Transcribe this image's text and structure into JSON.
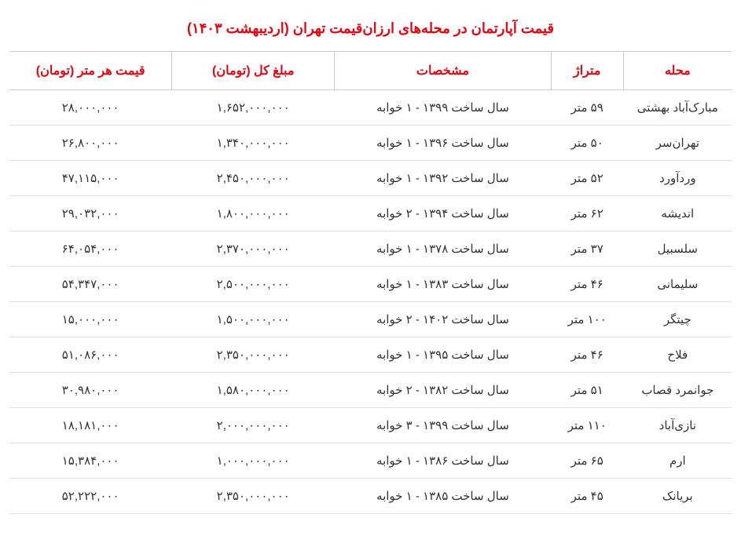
{
  "title": "قیمت آپارتمان در محله‌های ارزان‌قیمت تهران (اردیبهشت ۱۴۰۳)",
  "table": {
    "type": "table",
    "header_color": "#e30613",
    "border_color": "#cccccc",
    "row_border_color": "#e0e0e0",
    "text_color": "#333333",
    "background_color": "#ffffff",
    "title_fontsize": 18,
    "header_fontsize": 16,
    "cell_fontsize": 15,
    "columns": [
      {
        "key": "district",
        "label": "محله",
        "width": "15%"
      },
      {
        "key": "area",
        "label": "متراژ",
        "width": "10%"
      },
      {
        "key": "spec",
        "label": "مشخصات",
        "width": "30%"
      },
      {
        "key": "total",
        "label": "مبلغ کل (تومان)",
        "width": "22.5%"
      },
      {
        "key": "permeter",
        "label": "قیمت هر متر (تومان)",
        "width": "22.5%"
      }
    ],
    "rows": [
      {
        "district": "مبارک‌آباد بهشتی",
        "area": "۵۹ متر",
        "spec": "سال ساخت ۱۳۹۹ - ۱ خوابه",
        "total": "۱,۶۵۲,۰۰۰,۰۰۰",
        "permeter": "۲۸,۰۰۰,۰۰۰"
      },
      {
        "district": "تهران‌سر",
        "area": "۵۰ متر",
        "spec": "سال ساخت ۱۳۹۶ - ۱ خوابه",
        "total": "۱,۳۴۰,۰۰۰,۰۰۰",
        "permeter": "۲۶,۸۰۰,۰۰۰"
      },
      {
        "district": "وردآورد",
        "area": "۵۲ متر",
        "spec": "سال ساخت ۱۳۹۲ - ۱ خوابه",
        "total": "۲,۴۵۰,۰۰۰,۰۰۰",
        "permeter": "۴۷,۱۱۵,۰۰۰"
      },
      {
        "district": "اندیشه",
        "area": "۶۲ متر",
        "spec": "سال ساخت ۱۳۹۴ - ۲ خوابه",
        "total": "۱,۸۰۰,۰۰۰,۰۰۰",
        "permeter": "۲۹,۰۳۲,۰۰۰"
      },
      {
        "district": "سلسبیل",
        "area": "۳۷ متر",
        "spec": "سال ساخت ۱۳۷۸ - ۱ خوابه",
        "total": "۲,۳۷۰,۰۰۰,۰۰۰",
        "permeter": "۶۴,۰۵۴,۰۰۰"
      },
      {
        "district": "سلیمانی",
        "area": "۴۶ متر",
        "spec": "سال ساخت ۱۳۸۳ - ۱ خوابه",
        "total": "۲,۵۰۰,۰۰۰,۰۰۰",
        "permeter": "۵۴,۳۴۷,۰۰۰"
      },
      {
        "district": "چیتگر",
        "area": "۱۰۰ متر",
        "spec": "سال ساخت ۱۴۰۲ - ۲ خوابه",
        "total": "۱,۵۰۰,۰۰۰,۰۰۰",
        "permeter": "۱۵,۰۰۰,۰۰۰"
      },
      {
        "district": "فلاح",
        "area": "۴۶ متر",
        "spec": "سال ساخت ۱۳۹۵ - ۱ خوابه",
        "total": "۲,۳۵۰,۰۰۰,۰۰۰",
        "permeter": "۵۱,۰۸۶,۰۰۰"
      },
      {
        "district": "جوانمرد قصاب",
        "area": "۵۱ متر",
        "spec": "سال ساخت ۱۳۸۲ - ۲ خوابه",
        "total": "۱,۵۸۰,۰۰۰,۰۰۰",
        "permeter": "۳۰,۹۸۰,۰۰۰"
      },
      {
        "district": "نازی‌آباد",
        "area": "۱۱۰ متر",
        "spec": "سال ساخت ۱۳۹۹ - ۳ خوابه",
        "total": "۲,۰۰۰,۰۰۰,۰۰۰",
        "permeter": "۱۸,۱۸۱,۰۰۰"
      },
      {
        "district": "ارم",
        "area": "۶۵ متر",
        "spec": "سال ساخت ۱۳۸۶ - ۱ خوابه",
        "total": "۱,۰۰۰,۰۰۰,۰۰۰",
        "permeter": "۱۵,۳۸۴,۰۰۰"
      },
      {
        "district": "بریانک",
        "area": "۴۵ متر",
        "spec": "سال ساخت ۱۳۸۵ - ۱ خوابه",
        "total": "۲,۳۵۰,۰۰۰,۰۰۰",
        "permeter": "۵۲,۲۲۲,۰۰۰"
      }
    ]
  }
}
